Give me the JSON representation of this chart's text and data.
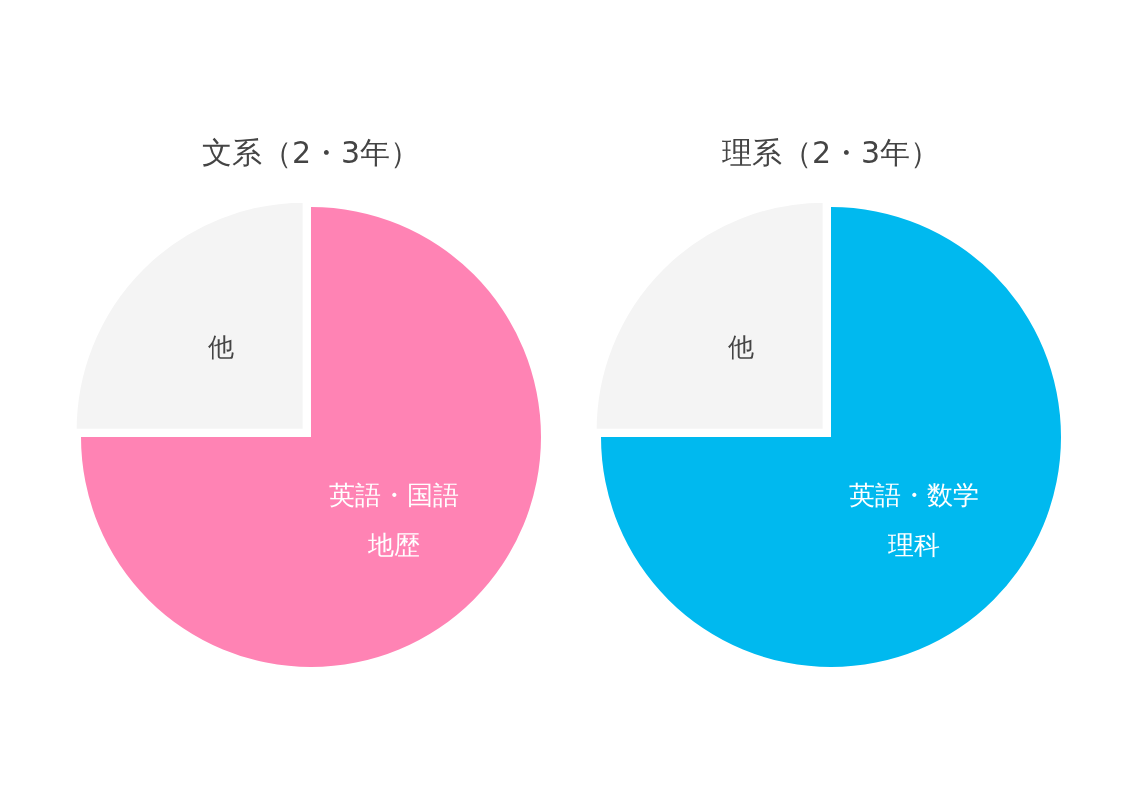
{
  "chart_data": [
    {
      "type": "pie",
      "title": "文系（2・3年）",
      "categories": [
        "英語・国語地歴",
        "他"
      ],
      "values": [
        75,
        25
      ],
      "colors": [
        "#ff83b4",
        "#f4f4f4"
      ]
    },
    {
      "type": "pie",
      "title": "理系（2・3年）",
      "categories": [
        "英語・数学理科",
        "他"
      ],
      "values": [
        75,
        25
      ],
      "colors": [
        "#00b9ef",
        "#f4f4f4"
      ]
    }
  ]
}
